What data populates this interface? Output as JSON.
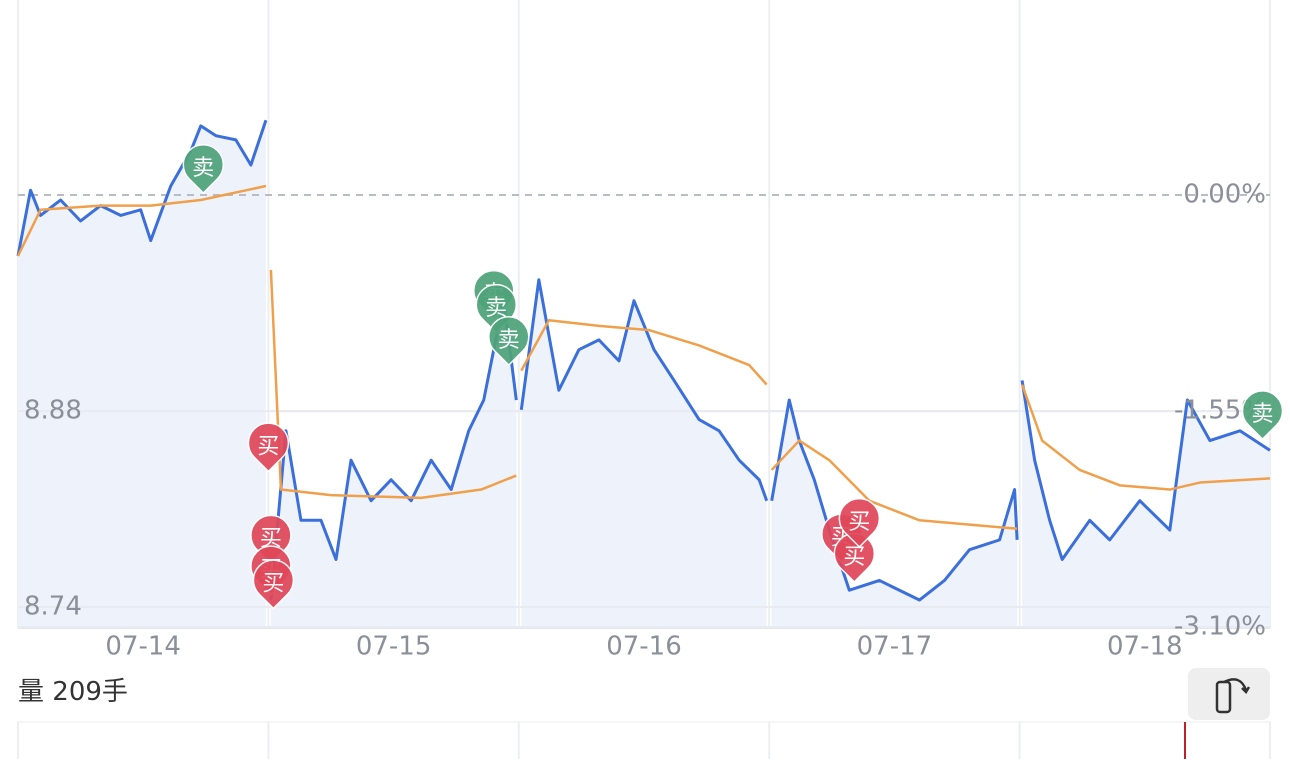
{
  "chart_data": {
    "type": "line",
    "xlim": [
      0,
      5
    ],
    "xticks": [
      {
        "value": 0.5,
        "label": "07-14"
      },
      {
        "value": 1.5,
        "label": "07-15"
      },
      {
        "value": 2.5,
        "label": "07-16"
      },
      {
        "value": 3.5,
        "label": "07-17"
      },
      {
        "value": 4.5,
        "label": "07-18"
      }
    ],
    "ylim": [
      8.725,
      9.174
    ],
    "yticks": [
      8.74,
      8.88
    ],
    "y2lim": [
      -3.107,
      1.399
    ],
    "y2ticks": [
      {
        "value": 0,
        "label": "0.00%"
      },
      {
        "value": -1.55,
        "label": "-1.55%"
      },
      {
        "value": -3.1,
        "label": "-3.10%"
      }
    ],
    "series": [
      {
        "name": "price",
        "color": "#3a6fdc",
        "x": [
          0,
          0.05,
          0.09,
          0.17,
          0.25,
          0.33,
          0.41,
          0.49,
          0.53,
          0.61,
          0.69,
          0.73,
          0.79,
          0.87,
          0.93,
          0.99,
          1.0,
          1.01,
          1.07,
          1.13,
          1.21,
          1.27,
          1.33,
          1.41,
          1.49,
          1.57,
          1.65,
          1.73,
          1.8,
          1.86,
          1.9,
          1.94,
          1.99,
          2.0,
          2.01,
          2.08,
          2.16,
          2.24,
          2.32,
          2.4,
          2.46,
          2.54,
          2.62,
          2.72,
          2.8,
          2.88,
          2.96,
          2.99,
          3.0,
          3.01,
          3.08,
          3.12,
          3.18,
          3.24,
          3.32,
          3.44,
          3.6,
          3.7,
          3.8,
          3.92,
          3.98,
          3.99,
          4.0,
          4.01,
          4.06,
          4.12,
          4.17,
          4.28,
          4.36,
          4.48,
          4.6,
          4.67,
          4.76,
          4.88,
          5.0
        ],
        "values": [
          8.991,
          9.038,
          9.02,
          9.031,
          9.016,
          9.027,
          9.02,
          9.024,
          9.002,
          9.041,
          9.066,
          9.084,
          9.077,
          9.074,
          9.056,
          9.088,
          null,
          8.745,
          8.866,
          8.802,
          8.802,
          8.774,
          8.845,
          8.816,
          8.831,
          8.816,
          8.845,
          8.824,
          8.866,
          8.888,
          8.924,
          8.959,
          8.888,
          null,
          8.881,
          8.974,
          8.895,
          8.924,
          8.931,
          8.916,
          8.959,
          8.924,
          8.902,
          8.874,
          8.866,
          8.845,
          8.831,
          8.816,
          null,
          8.816,
          8.888,
          8.859,
          8.831,
          8.795,
          8.752,
          8.759,
          8.745,
          8.759,
          8.781,
          8.788,
          8.824,
          8.788,
          null,
          8.902,
          8.845,
          8.802,
          8.774,
          8.802,
          8.788,
          8.816,
          8.795,
          8.888,
          8.859,
          8.866,
          8.852
        ]
      },
      {
        "name": "average",
        "color": "#f0a04b",
        "x": [
          0,
          0.09,
          0.33,
          0.53,
          0.73,
          0.99,
          1.0,
          1.01,
          1.05,
          1.25,
          1.61,
          1.85,
          1.99,
          2.0,
          2.01,
          2.12,
          2.32,
          2.52,
          2.72,
          2.92,
          2.99,
          3.0,
          3.01,
          3.12,
          3.24,
          3.4,
          3.6,
          3.92,
          3.99,
          4.0,
          4.01,
          4.09,
          4.24,
          4.4,
          4.6,
          4.72,
          5.0
        ],
        "values": [
          8.991,
          9.024,
          9.027,
          9.027,
          9.031,
          9.041,
          null,
          8.981,
          8.824,
          8.82,
          8.818,
          8.824,
          8.834,
          null,
          8.909,
          8.945,
          8.941,
          8.938,
          8.927,
          8.913,
          8.899,
          null,
          8.838,
          8.859,
          8.845,
          8.816,
          8.802,
          8.797,
          8.796,
          null,
          8.899,
          8.859,
          8.838,
          8.827,
          8.824,
          8.829,
          8.832
        ]
      }
    ],
    "markers": [
      {
        "label": "卖",
        "x": 0.74,
        "y": 9.036
      },
      {
        "label": "卖",
        "x": 1.9,
        "y": 8.946
      },
      {
        "label": "卖",
        "x": 1.91,
        "y": 8.936
      },
      {
        "label": "卖",
        "x": 1.96,
        "y": 8.913
      },
      {
        "label": "买",
        "x": 1.0,
        "y": 8.837
      },
      {
        "label": "买",
        "x": 1.01,
        "y": 8.771
      },
      {
        "label": "买",
        "x": 1.01,
        "y": 8.749
      },
      {
        "label": "买",
        "x": 1.02,
        "y": 8.739
      },
      {
        "label": "买",
        "x": 3.29,
        "y": 8.772
      },
      {
        "label": "买",
        "x": 3.34,
        "y": 8.758
      },
      {
        "label": "买",
        "x": 3.36,
        "y": 8.783
      },
      {
        "label": "卖",
        "x": 4.97,
        "y": 8.86
      }
    ],
    "volume": {
      "label": "量",
      "value": 209,
      "unit": "手"
    }
  }
}
